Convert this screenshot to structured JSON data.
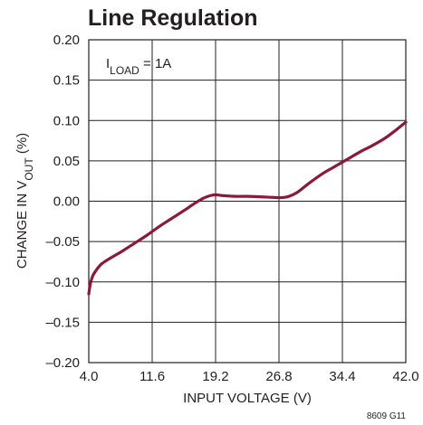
{
  "chart_data": {
    "type": "line",
    "title": "Line Regulation",
    "xlabel": "INPUT VOLTAGE (V)",
    "ylabel_parts": {
      "prefix": "CHANGE IN V",
      "subscript": "OUT",
      "suffix": " (%)"
    },
    "annotation": {
      "main": "I",
      "subscript": "LOAD",
      "rest": " = 1A"
    },
    "figure_id": "8609 G11",
    "xlim": [
      4.0,
      42.0
    ],
    "ylim": [
      -0.2,
      0.2
    ],
    "x_ticks": [
      4.0,
      11.6,
      19.2,
      26.8,
      34.4,
      42.0
    ],
    "x_tick_labels": [
      "4.0",
      "11.6",
      "19.2",
      "26.8",
      "34.4",
      "42.0"
    ],
    "y_ticks": [
      0.2,
      0.15,
      0.1,
      0.05,
      0.0,
      -0.05,
      -0.1,
      -0.15,
      -0.2
    ],
    "y_tick_labels": [
      "0.20",
      "0.15",
      "0.10",
      "0.05",
      "0.00",
      "–0.05",
      "–0.10",
      "–0.15",
      "–0.20"
    ],
    "grid": true,
    "colors": {
      "curve": "#8b1a3a"
    },
    "series": [
      {
        "x": [
          4.0,
          4.2,
          4.5,
          5.0,
          5.5,
          6.2,
          7.0,
          8.0,
          9.5,
          11.0,
          12.5,
          14.0,
          15.5,
          16.8,
          17.8,
          18.6,
          19.2,
          20.0,
          21.5,
          23.0,
          24.5,
          25.6,
          26.5,
          27.2,
          28.0,
          29.0,
          30.5,
          32.0,
          33.5,
          35.0,
          36.5,
          38.0,
          39.5,
          40.8,
          42.0
        ],
        "y": [
          -0.115,
          -0.102,
          -0.092,
          -0.084,
          -0.078,
          -0.073,
          -0.068,
          -0.062,
          -0.052,
          -0.042,
          -0.031,
          -0.021,
          -0.011,
          -0.002,
          0.004,
          0.007,
          0.008,
          0.007,
          0.006,
          0.006,
          0.0055,
          0.005,
          0.0045,
          0.0045,
          0.006,
          0.011,
          0.023,
          0.034,
          0.043,
          0.052,
          0.061,
          0.069,
          0.078,
          0.088,
          0.098
        ]
      }
    ]
  }
}
